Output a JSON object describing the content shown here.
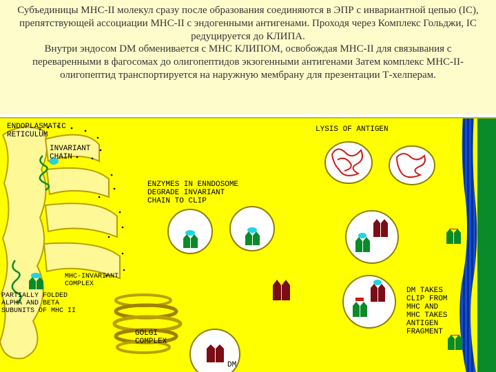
{
  "header": {
    "text": "Субъединицы MHC-II молекул сразу после образования соединяются в ЭПР с инвариантной цепью (IC), препятствующей ассоциации MHC-II с эндогенными антигенами. Проходя через Комплекс Гольджи, IC редуцируется до КЛИПА.\nВнутри эндосом DM обменивается с MHC КЛИПОМ, освобождая MHC-II для связывания с переваренными в фагосомах до олигопептидов экзогенными антигенами  Затем комплекс MHC-II-олигопептид транспортируется на наружную мембрану для презентации Т-хелперам.",
    "color": "#333333",
    "background": "#fffccc",
    "fontsize": 15
  },
  "diagram": {
    "background": "#ffff00",
    "membrane_colors": [
      "#003399",
      "#1a4bd1"
    ],
    "er_fill": "#fff896",
    "er_stroke": "#b8a000",
    "golgi": [
      "#b8a000",
      "#a08000"
    ],
    "vesicle_fill": "#ffffff",
    "vesicle_stroke": "#8f7f00",
    "mhc_green": "#0b8a2a",
    "cyan": "#22d3e0",
    "dm_maroon": "#7a0d16",
    "antigen_red": "#cc1a1a",
    "antigen_bg": "#ffffff",
    "tcell_green": "#0b8a2a",
    "label_font": "Courier New",
    "label_size": 11,
    "labels": {
      "er": "ENDOPLASMATIC\nRETICULUM",
      "inv": "INVARIANT\nCHAIN",
      "enz": "ENZYMES IN ENNDOSOME\nDEGRADE INVARIANT\nCHAIN TO CLIP",
      "mhcinv": "MHC-INVARIANT\nCOMPLEX",
      "part": "PARTIALLY FOLDED\nALPHA AND BETA\nSUBUNITS OF MHC II",
      "golgi": "GOLGI\nCOMPLEX",
      "dm": "DM",
      "lysis": "LYSIS OF ANTIGEN",
      "dmtakes": "DM TAKES\nCLIP FROM\nMHC AND\nMHC TAKES\nANTIGEN\nFRAGMENT"
    }
  }
}
